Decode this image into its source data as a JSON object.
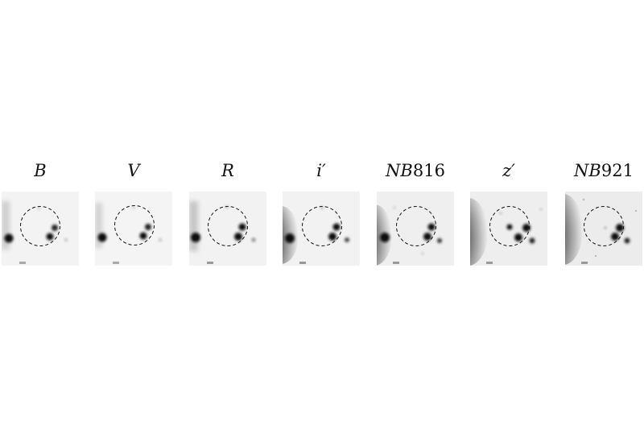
{
  "figure": {
    "panels": [
      {
        "id": "B",
        "label_italic": "B",
        "label_rest": ""
      },
      {
        "id": "V",
        "label_italic": "V",
        "label_rest": ""
      },
      {
        "id": "R",
        "label_italic": "R",
        "label_rest": ""
      },
      {
        "id": "i",
        "label_italic": "i′",
        "label_rest": ""
      },
      {
        "id": "NB816",
        "label_italic": "NB",
        "label_rest": "816"
      },
      {
        "id": "z",
        "label_italic": "z′",
        "label_rest": ""
      },
      {
        "id": "NB921",
        "label_italic": "NB",
        "label_rest": "921"
      }
    ],
    "colors": {
      "background": "#ffffff",
      "sky": "#f2f2f2",
      "source": "#111111",
      "aperture": "#111111"
    }
  }
}
